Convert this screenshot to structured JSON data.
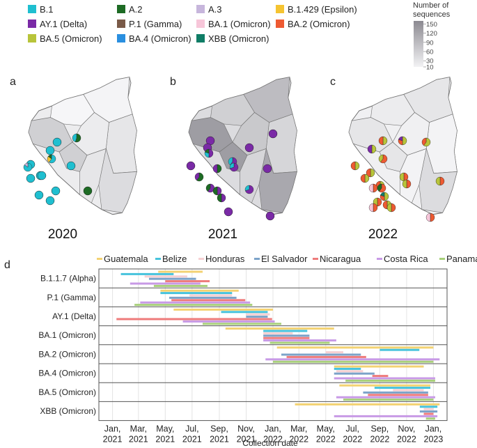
{
  "lineage_legend": [
    {
      "label": "B.1",
      "color": "#1fbfd0"
    },
    {
      "label": "A.2",
      "color": "#1d6b24"
    },
    {
      "label": "A.3",
      "color": "#c7b6dc"
    },
    {
      "label": "B.1.429 (Epsilon)",
      "color": "#f5c431"
    },
    {
      "label": "AY.1 (Delta)",
      "color": "#7a2aa6"
    },
    {
      "label": "P.1 (Gamma)",
      "color": "#7a5a48"
    },
    {
      "label": "BA.1 (Omicron)",
      "color": "#f7c6d9"
    },
    {
      "label": "BA.2 (Omicron)",
      "color": "#ee5a32"
    },
    {
      "label": "BA.5 (Omicron)",
      "color": "#b8c43a"
    },
    {
      "label": "BA.4 (Omicron)",
      "color": "#2a8fe0"
    },
    {
      "label": "XBB (Omicron)",
      "color": "#0f7d66"
    }
  ],
  "sequences_legend": {
    "title_line1": "Number of",
    "title_line2": "sequences",
    "ticks": [
      "150",
      "120",
      "90",
      "60",
      "30",
      "10"
    ],
    "min": 10,
    "max": 160,
    "color_low": "#f2f2f4",
    "color_high": "#8c8a91"
  },
  "panels": [
    {
      "letter": "a",
      "year": "2020",
      "pies": [
        {
          "slices": [
            1
          ]
        },
        {
          "slices": [
            0.55,
            0.45
          ],
          "colors": [
            "#1d6b24",
            "#1fbfd0"
          ]
        },
        {
          "slices": [
            1
          ]
        },
        {
          "slices": [
            0.6,
            0.25,
            0.15
          ],
          "colors": [
            "#1fbfd0",
            "#f5c431",
            "#1d6b24"
          ]
        },
        {
          "slices": [
            1
          ]
        },
        {
          "slices": [
            0.85,
            0.15
          ],
          "colors": [
            "#1fbfd0",
            "#c7b6dc"
          ]
        },
        {
          "slices": [
            1
          ]
        },
        {
          "slices": [
            1
          ]
        },
        {
          "slices": [
            1
          ]
        },
        {
          "slices": [
            1
          ]
        },
        {
          "slices": [
            1
          ]
        },
        {
          "slices": [
            1
          ]
        },
        {
          "slices": [
            1
          ]
        },
        {
          "slices": [
            1
          ],
          "colors": [
            "#1d6b24"
          ]
        }
      ]
    },
    {
      "letter": "b",
      "year": "2021",
      "pies": [
        {
          "slices": [
            1
          ],
          "colors": [
            "#7a2aa6"
          ]
        },
        {
          "slices": [
            1
          ],
          "colors": [
            "#7a2aa6"
          ]
        },
        {
          "slices": [
            1
          ],
          "colors": [
            "#7a2aa6"
          ]
        },
        {
          "slices": [
            1
          ],
          "colors": [
            "#7a2aa6"
          ]
        },
        {
          "slices": [
            0.5,
            0.3,
            0.2
          ],
          "colors": [
            "#7a2aa6",
            "#1fbfd0",
            "#1d6b24"
          ]
        },
        {
          "slices": [
            0.6,
            0.4
          ],
          "colors": [
            "#7a2aa6",
            "#1fbfd0"
          ]
        },
        {
          "slices": [
            0.5,
            0.5
          ],
          "colors": [
            "#1d6b24",
            "#7a2aa6"
          ]
        },
        {
          "slices": [
            0.7,
            0.3
          ],
          "colors": [
            "#7a2aa6",
            "#1fbfd0"
          ]
        },
        {
          "slices": [
            1
          ],
          "colors": [
            "#7a2aa6"
          ]
        },
        {
          "slices": [
            0.6,
            0.4
          ],
          "colors": [
            "#1d6b24",
            "#7a2aa6"
          ]
        },
        {
          "slices": [
            0.6,
            0.4
          ],
          "colors": [
            "#7a2aa6",
            "#1d6b24"
          ]
        },
        {
          "slices": [
            0.5,
            0.5
          ],
          "colors": [
            "#7a2aa6",
            "#1d6b24"
          ]
        },
        {
          "slices": [
            0.5,
            0.5
          ],
          "colors": [
            "#7a2aa6",
            "#1d6b24"
          ]
        },
        {
          "slices": [
            0.7,
            0.3
          ],
          "colors": [
            "#7a2aa6",
            "#1fbfd0"
          ]
        },
        {
          "slices": [
            1
          ],
          "colors": [
            "#7a2aa6"
          ]
        },
        {
          "slices": [
            1
          ],
          "colors": [
            "#7a2aa6"
          ]
        },
        {
          "slices": [
            1
          ],
          "colors": [
            "#7a2aa6"
          ]
        }
      ]
    },
    {
      "letter": "c",
      "year": "2022",
      "pies": [
        {
          "slices": [
            0.5,
            0.5
          ],
          "colors": [
            "#b8c43a",
            "#ee5a32"
          ]
        },
        {
          "slices": [
            0.5,
            0.3,
            0.2
          ],
          "colors": [
            "#b8c43a",
            "#ee5a32",
            "#7a2aa6"
          ]
        },
        {
          "slices": [
            0.6,
            0.4
          ],
          "colors": [
            "#b8c43a",
            "#ee5a32"
          ]
        },
        {
          "slices": [
            0.5,
            0.5
          ],
          "colors": [
            "#b8c43a",
            "#7a2aa6"
          ]
        },
        {
          "slices": [
            0.6,
            0.4
          ],
          "colors": [
            "#ee5a32",
            "#b8c43a"
          ]
        },
        {
          "slices": [
            0.5,
            0.5
          ],
          "colors": [
            "#b8c43a",
            "#ee5a32"
          ]
        },
        {
          "slices": [
            0.5,
            0.5
          ],
          "colors": [
            "#b8c43a",
            "#ee5a32"
          ]
        },
        {
          "slices": [
            0.5,
            0.5
          ],
          "colors": [
            "#ee5a32",
            "#b8c43a"
          ]
        },
        {
          "slices": [
            0.5,
            0.5
          ],
          "colors": [
            "#b8c43a",
            "#ee5a32"
          ]
        },
        {
          "slices": [
            0.5,
            0.5
          ],
          "colors": [
            "#ee5a32",
            "#f7c6d9"
          ]
        },
        {
          "slices": [
            0.6,
            0.4
          ],
          "colors": [
            "#ee5a32",
            "#1d6b24"
          ]
        },
        {
          "slices": [
            0.5,
            0.3,
            0.2
          ],
          "colors": [
            "#b8c43a",
            "#ee5a32",
            "#0f7d66"
          ]
        },
        {
          "slices": [
            0.5,
            0.5
          ],
          "colors": [
            "#ee5a32",
            "#b8c43a"
          ]
        },
        {
          "slices": [
            0.5,
            0.5
          ],
          "colors": [
            "#b8c43a",
            "#ee5a32"
          ]
        },
        {
          "slices": [
            0.5,
            0.5
          ],
          "colors": [
            "#ee5a32",
            "#b8c43a"
          ]
        },
        {
          "slices": [
            0.5,
            0.5
          ],
          "colors": [
            "#b8c43a",
            "#ee5a32"
          ]
        },
        {
          "slices": [
            0.5,
            0.5
          ],
          "colors": [
            "#ee5a32",
            "#f7c6d9"
          ]
        },
        {
          "slices": [
            0.5,
            0.5
          ],
          "colors": [
            "#ee5a32",
            "#b8c43a"
          ]
        },
        {
          "slices": [
            0.5,
            0.5
          ],
          "colors": [
            "#ee5a32",
            "#b8c43a"
          ]
        },
        {
          "slices": [
            0.5,
            0.5
          ],
          "colors": [
            "#ee5a32",
            "#f7c6d9"
          ]
        }
      ]
    }
  ],
  "panel_d_letter": "d",
  "chart_data": {
    "type": "bar",
    "subtype": "horizontal-range (timeline) bars",
    "xlabel": "Collection date",
    "ylabel": "",
    "xlim": [
      "2020-12-01",
      "2023-02-01"
    ],
    "x_ticks": [
      {
        "date": "2021-01",
        "line1": "Jan,",
        "line2": "2021"
      },
      {
        "date": "2021-03",
        "line1": "Mar,",
        "line2": "2021"
      },
      {
        "date": "2021-05",
        "line1": "May,",
        "line2": "2021"
      },
      {
        "date": "2021-07",
        "line1": "Jul,",
        "line2": "2021"
      },
      {
        "date": "2021-09",
        "line1": "Sep,",
        "line2": "2021"
      },
      {
        "date": "2021-11",
        "line1": "Nov,",
        "line2": "2021"
      },
      {
        "date": "2022-01",
        "line1": "Jan,",
        "line2": "2022"
      },
      {
        "date": "2022-03",
        "line1": "Mar,",
        "line2": "2022"
      },
      {
        "date": "2022-05",
        "line1": "May,",
        "line2": "2022"
      },
      {
        "date": "2022-07",
        "line1": "Jul,",
        "line2": "2022"
      },
      {
        "date": "2022-09",
        "line1": "Sep,",
        "line2": "2022"
      },
      {
        "date": "2022-11",
        "line1": "Nov,",
        "line2": "2022"
      },
      {
        "date": "2023-01",
        "line1": "Jan,",
        "line2": "2023"
      }
    ],
    "countries": [
      {
        "name": "Guatemala",
        "color": "#f3d272"
      },
      {
        "name": "Belize",
        "color": "#47c3dc"
      },
      {
        "name": "Honduras",
        "color": "#f6d0d2"
      },
      {
        "name": "El Salvador",
        "color": "#7ca3c9"
      },
      {
        "name": "Nicaragua",
        "color": "#ee7b7b"
      },
      {
        "name": "Costa Rica",
        "color": "#c89ae6"
      },
      {
        "name": "Panama",
        "color": "#a8d07a"
      }
    ],
    "series": [
      {
        "name": "B.1.1.7 (Alpha)",
        "ranges": [
          [
            "Guatemala",
            "2021-04-15",
            "2021-07-25"
          ],
          [
            "Belize",
            "2021-01-20",
            "2021-05-20"
          ],
          [
            "Honduras",
            "2021-03-15",
            "2021-06-20"
          ],
          [
            "El Salvador",
            "2021-03-25",
            "2021-07-10"
          ],
          [
            "Nicaragua",
            "2021-05-01",
            "2021-08-10"
          ],
          [
            "Costa Rica",
            "2021-02-10",
            "2021-07-20"
          ],
          [
            "Panama",
            "2021-04-05",
            "2021-08-05"
          ]
        ]
      },
      {
        "name": "P.1 (Gamma)",
        "ranges": [
          [
            "Guatemala",
            "2021-04-20",
            "2021-10-15"
          ],
          [
            "Belize",
            "2021-04-20",
            "2021-09-30"
          ],
          [
            "Honduras",
            "2021-06-25",
            "2021-09-30"
          ],
          [
            "El Salvador",
            "2021-05-10",
            "2021-10-10"
          ],
          [
            "Nicaragua",
            "2021-05-15",
            "2021-10-30"
          ],
          [
            "Costa Rica",
            "2021-03-05",
            "2021-11-10"
          ],
          [
            "Panama",
            "2021-02-20",
            "2021-11-15"
          ]
        ]
      },
      {
        "name": "AY.1 (Delta)",
        "ranges": [
          [
            "Guatemala",
            "2021-05-20",
            "2022-01-01"
          ],
          [
            "Belize",
            "2021-09-05",
            "2021-12-20"
          ],
          [
            "Honduras",
            "2021-11-01",
            "2021-12-25"
          ],
          [
            "El Salvador",
            "2021-11-01",
            "2021-12-20"
          ],
          [
            "Nicaragua",
            "2021-01-10",
            "2021-12-30"
          ],
          [
            "Costa Rica",
            "2021-06-10",
            "2022-01-05"
          ],
          [
            "Panama",
            "2021-07-25",
            "2022-01-20"
          ]
        ]
      },
      {
        "name": "BA.1 (Omicron)",
        "ranges": [
          [
            "Guatemala",
            "2021-09-15",
            "2022-05-20"
          ],
          [
            "Belize",
            "2021-12-10",
            "2022-03-20"
          ],
          [
            "Honduras",
            "2021-12-10",
            "2022-02-15"
          ],
          [
            "El Salvador",
            "2021-12-10",
            "2022-03-25"
          ],
          [
            "Nicaragua",
            "2021-12-10",
            "2022-03-25"
          ],
          [
            "Costa Rica",
            "2021-12-10",
            "2022-05-25"
          ],
          [
            "Panama",
            "2021-12-25",
            "2022-05-10"
          ]
        ]
      },
      {
        "name": "BA.2 (Omicron)",
        "ranges": [
          [
            "Guatemala",
            "2022-01-10",
            "2023-01-01"
          ],
          [
            "Belize",
            "2022-09-01",
            "2022-11-30"
          ],
          [
            "Honduras",
            "2022-05-01",
            "2022-06-10"
          ],
          [
            "El Salvador",
            "2022-01-20",
            "2022-07-20"
          ],
          [
            "Nicaragua",
            "2022-02-01",
            "2022-08-01"
          ],
          [
            "Costa Rica",
            "2021-12-15",
            "2023-01-15"
          ],
          [
            "Panama",
            "2022-01-01",
            "2023-01-01"
          ]
        ]
      },
      {
        "name": "BA.4 (Omicron)",
        "ranges": [
          [
            "Guatemala",
            "2022-05-20",
            "2022-12-10"
          ],
          [
            "Belize",
            "2022-05-20",
            "2022-07-20"
          ],
          [
            "Honduras",
            "2022-05-25",
            "2022-07-25"
          ],
          [
            "El Salvador",
            "2022-05-20",
            "2022-08-20"
          ],
          [
            "Nicaragua",
            "2022-08-15",
            "2022-09-20"
          ],
          [
            "Costa Rica",
            "2022-05-20",
            "2023-01-05"
          ],
          [
            "Panama",
            "2022-06-15",
            "2023-01-05"
          ]
        ]
      },
      {
        "name": "BA.5 (Omicron)",
        "ranges": [
          [
            "Guatemala",
            "2022-06-01",
            "2022-12-25"
          ],
          [
            "Belize",
            "2022-08-20",
            "2022-12-25"
          ],
          [
            "Honduras",
            "2022-10-01",
            "2022-12-10"
          ],
          [
            "El Salvador",
            "2022-07-25",
            "2022-12-20"
          ],
          [
            "Nicaragua",
            "2022-08-05",
            "2022-12-20"
          ],
          [
            "Costa Rica",
            "2022-05-25",
            "2023-01-05"
          ],
          [
            "Panama",
            "2022-06-10",
            "2023-01-01"
          ]
        ]
      },
      {
        "name": "XBB (Omicron)",
        "ranges": [
          [
            "Guatemala",
            "2022-02-20",
            "2023-01-15"
          ],
          [
            "Belize",
            "2022-12-01",
            "2023-01-10"
          ],
          [
            "Honduras",
            "2022-12-10",
            "2023-01-01"
          ],
          [
            "El Salvador",
            "2022-12-01",
            "2023-01-10"
          ],
          [
            "Nicaragua",
            "2022-12-10",
            "2023-01-01"
          ],
          [
            "Costa Rica",
            "2022-05-20",
            "2023-01-10"
          ],
          [
            "Panama",
            "2022-12-15",
            "2023-01-05"
          ]
        ]
      }
    ]
  }
}
